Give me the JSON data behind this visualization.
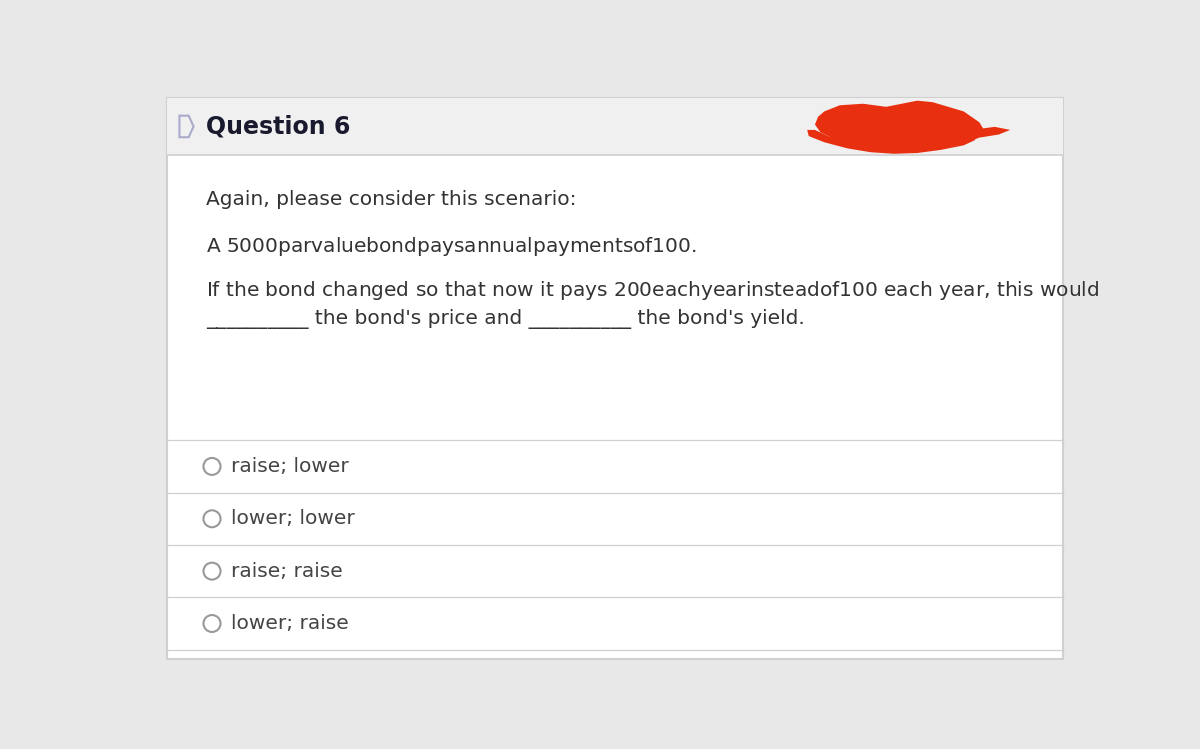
{
  "title": "Question 6",
  "header_bg": "#f0f0f0",
  "body_bg": "#ffffff",
  "outer_bg": "#e8e8e8",
  "border_color": "#d0d0d0",
  "title_color": "#1a1a2e",
  "text_color": "#333333",
  "option_color": "#444444",
  "radio_color": "#999999",
  "line1": "Again, please consider this scenario:",
  "line2": "A $5000 par value bond pays annual payments of $100.",
  "line3a": "If the bond changed so that now it pays $200 each year instead of $100 each year, this would",
  "line3b": "__________ the bond's price and __________ the bond's yield.",
  "options": [
    "raise; lower",
    "lower; lower",
    "raise; raise",
    "lower; raise"
  ],
  "figsize": [
    12.0,
    7.49
  ],
  "dpi": 100
}
